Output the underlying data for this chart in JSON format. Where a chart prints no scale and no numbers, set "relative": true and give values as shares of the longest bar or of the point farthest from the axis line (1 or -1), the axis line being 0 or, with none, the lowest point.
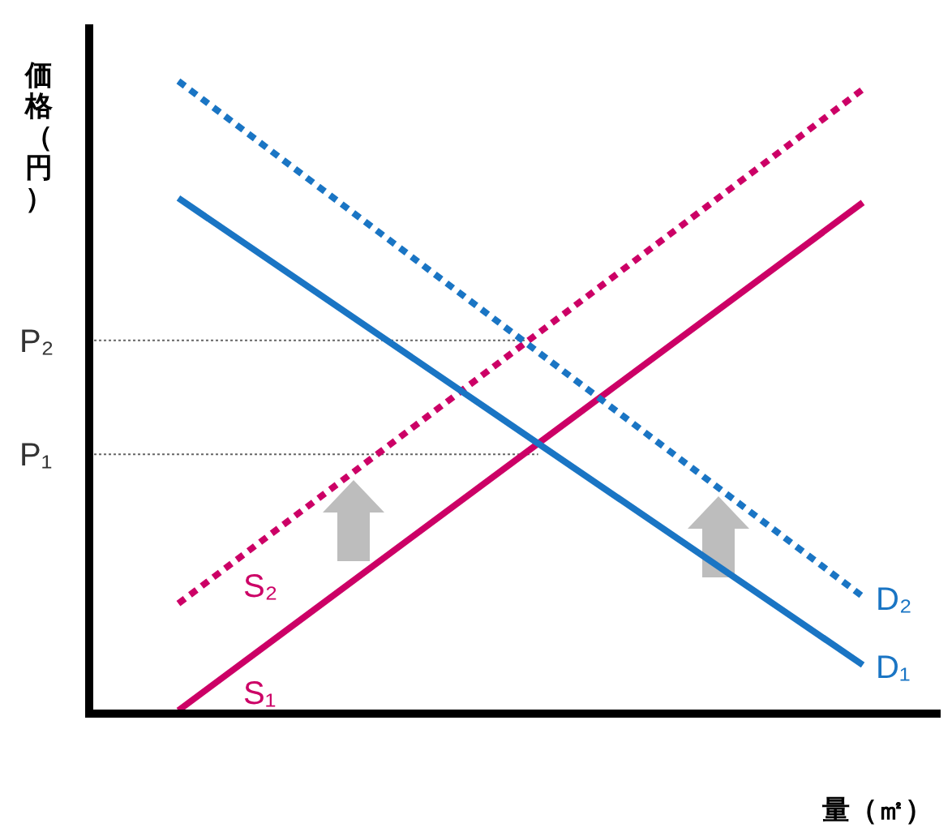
{
  "chart_data": {
    "type": "line",
    "relative": true,
    "ylabel": "価格（円）",
    "xlabel": "量（㎡）",
    "legend": false,
    "marker": "none",
    "categories": [
      null,
      null
    ],
    "series": [
      {
        "name": "S₁",
        "color": "#cc0066",
        "line_style": "solid",
        "values": [
          0.005,
          0.808
        ]
      },
      {
        "name": "S₂",
        "color": "#cc0066",
        "line_style": "dotted",
        "values": [
          0.174,
          0.987
        ]
      },
      {
        "name": "D₁",
        "color": "#1a75c4",
        "line_style": "solid",
        "values": [
          0.815,
          0.077
        ]
      },
      {
        "name": "D₂",
        "color": "#1a75c4",
        "line_style": "dotted",
        "values": [
          1.0,
          0.185
        ]
      }
    ],
    "ref_lines": [
      {
        "axis": "y",
        "value": 0.59,
        "label": "P₂",
        "color": "#666666",
        "line_style": "dotted"
      },
      {
        "axis": "y",
        "value": 0.41,
        "label": "P₁",
        "color": "#666666",
        "line_style": "dotted"
      }
    ]
  }
}
